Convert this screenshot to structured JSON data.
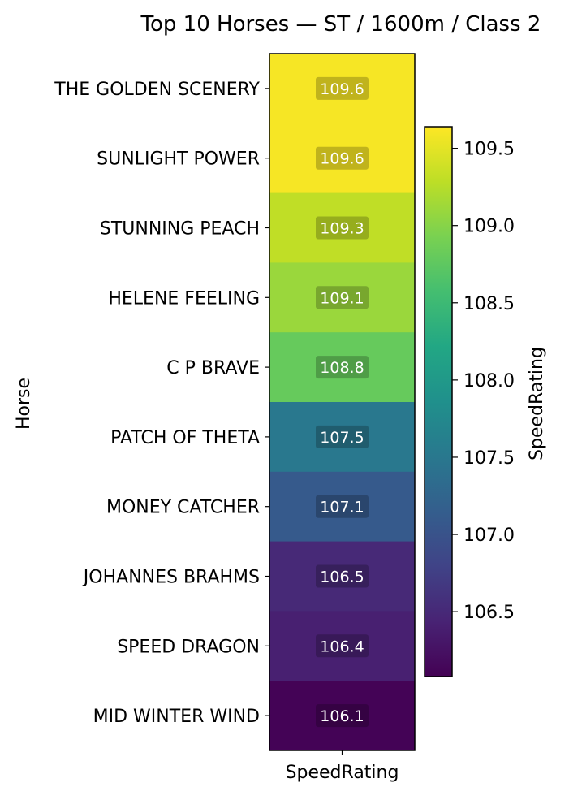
{
  "chart_data": {
    "type": "heatmap",
    "title": "Top 10 Horses — ST / 1600m / Class 2",
    "xlabel": "SpeedRating",
    "ylabel": "Horse",
    "x_categories": [
      "SpeedRating"
    ],
    "y_categories": [
      "THE GOLDEN SCENERY",
      "SUNLIGHT POWER",
      "STUNNING PEACH",
      "HELENE FEELING",
      "C P BRAVE",
      "PATCH OF THETA",
      "MONEY CATCHER",
      "JOHANNES BRAHMS",
      "SPEED DRAGON",
      "MID WINTER WIND"
    ],
    "values": [
      109.6,
      109.6,
      109.3,
      109.1,
      108.8,
      107.5,
      107.1,
      106.5,
      106.4,
      106.1
    ],
    "value_labels": [
      "109.6",
      "109.6",
      "109.3",
      "109.1",
      "108.8",
      "107.5",
      "107.1",
      "106.5",
      "106.4",
      "106.1"
    ],
    "colormap": "viridis",
    "colorbar": {
      "label": "SpeedRating",
      "range": [
        106.08,
        109.64
      ],
      "ticks": [
        106.5,
        107.0,
        107.5,
        108.0,
        108.5,
        109.0,
        109.5
      ],
      "tick_labels": [
        "106.5",
        "107.0",
        "107.5",
        "108.0",
        "108.5",
        "109.0",
        "109.5"
      ]
    }
  }
}
